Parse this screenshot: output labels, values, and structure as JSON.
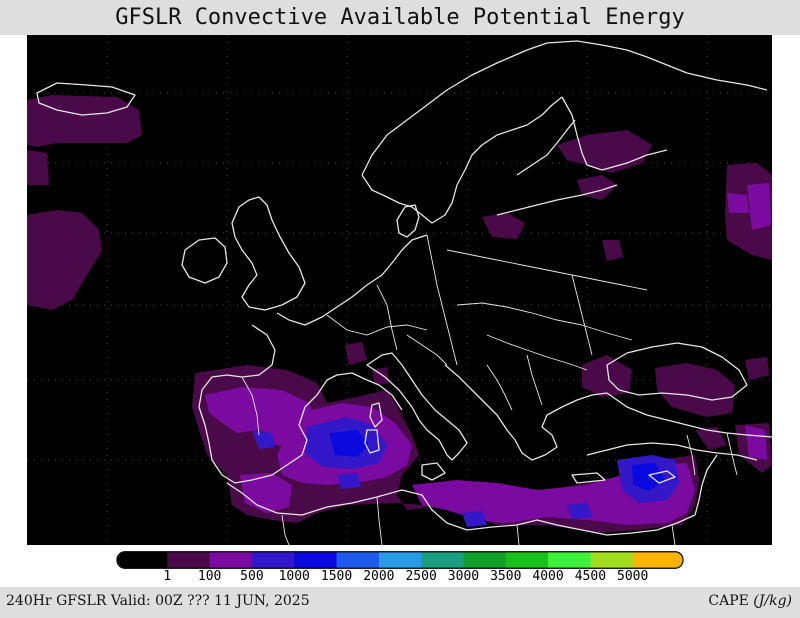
{
  "title": "GFSLR Convective Available Potential Energy",
  "footer": {
    "valid_text": "240Hr GFSLR Valid: 00Z ??? 11 JUN, 2025",
    "variable": "CAPE",
    "unit": "(J/kg)"
  },
  "colorbar": {
    "colors": [
      "#000000",
      "#4a0a4a",
      "#7a0aa0",
      "#3218c8",
      "#0a0ae0",
      "#1e5aec",
      "#2a9be6",
      "#1aa07e",
      "#12a028",
      "#18c018",
      "#3cf03c",
      "#a0dc1e",
      "#fab400"
    ],
    "labels": [
      "1",
      "100",
      "500",
      "1000",
      "1500",
      "2000",
      "2500",
      "3000",
      "3500",
      "4000",
      "4500",
      "5000"
    ]
  },
  "map": {
    "region": "Europe and Mediterranean",
    "background": "#000000",
    "coastline_color": "#e6e6e6"
  }
}
